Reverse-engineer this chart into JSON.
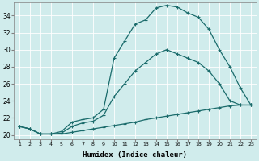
{
  "xlabel": "Humidex (Indice chaleur)",
  "x_ticks": [
    1,
    2,
    3,
    4,
    5,
    6,
    7,
    8,
    9,
    10,
    11,
    12,
    13,
    14,
    15,
    16,
    17,
    18,
    19,
    20,
    21,
    22,
    23
  ],
  "ylim": [
    19.5,
    35.5
  ],
  "yticks": [
    20,
    22,
    24,
    26,
    28,
    30,
    32,
    34
  ],
  "bg_color": "#d0ecec",
  "line_color": "#1a6b6b",
  "curve1_x": [
    1,
    2,
    3,
    4,
    5,
    6,
    7,
    8,
    9,
    10,
    11,
    12,
    13,
    14,
    15,
    16,
    17,
    18,
    19,
    20,
    21,
    22,
    23
  ],
  "curve1_y": [
    21.0,
    20.7,
    20.1,
    20.1,
    20.4,
    21.5,
    21.8,
    22.0,
    23.0,
    29.0,
    31.0,
    33.0,
    33.5,
    34.9,
    35.2,
    35.0,
    34.3,
    33.8,
    32.4,
    30.0,
    28.0,
    25.5,
    23.5
  ],
  "curve2_x": [
    1,
    2,
    3,
    4,
    5,
    6,
    7,
    8,
    9,
    10,
    11,
    12,
    13,
    14,
    15,
    16,
    17,
    18,
    19,
    20,
    21,
    22,
    23
  ],
  "curve2_y": [
    21.0,
    20.7,
    20.1,
    20.1,
    20.2,
    21.0,
    21.4,
    21.6,
    22.3,
    24.5,
    26.0,
    27.5,
    28.5,
    29.5,
    30.0,
    29.5,
    29.0,
    28.5,
    27.5,
    26.0,
    24.0,
    23.5,
    23.5
  ],
  "curve3_x": [
    1,
    2,
    3,
    4,
    5,
    6,
    7,
    8,
    9,
    10,
    11,
    12,
    13,
    14,
    15,
    16,
    17,
    18,
    19,
    20,
    21,
    22,
    23
  ],
  "curve3_y": [
    21.0,
    20.7,
    20.1,
    20.1,
    20.1,
    20.3,
    20.5,
    20.7,
    20.9,
    21.1,
    21.3,
    21.5,
    21.8,
    22.0,
    22.2,
    22.4,
    22.6,
    22.8,
    23.0,
    23.2,
    23.4,
    23.5,
    23.5
  ]
}
